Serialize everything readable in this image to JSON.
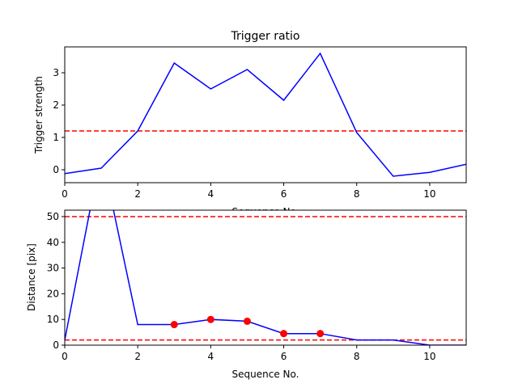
{
  "chart_data": [
    {
      "type": "line",
      "title": "Trigger ratio",
      "xlabel": "Sequence No.",
      "ylabel": "Trigger strength",
      "xlim": [
        0,
        11
      ],
      "ylim": [
        -0.4,
        3.8
      ],
      "xticks": [
        0,
        2,
        4,
        6,
        8,
        10
      ],
      "yticks": [
        0,
        1,
        2,
        3
      ],
      "grid": false,
      "series": [
        {
          "color": "#0000ff",
          "x": [
            0,
            1,
            2,
            3,
            4,
            5,
            6,
            7,
            8,
            9,
            10,
            11
          ],
          "y": [
            -0.12,
            0.05,
            1.2,
            3.3,
            2.5,
            3.1,
            2.15,
            3.6,
            1.15,
            -0.2,
            -0.08,
            0.17
          ]
        }
      ],
      "hlines": [
        {
          "y": 1.2,
          "color": "#ff0000",
          "style": "dashed"
        }
      ]
    },
    {
      "type": "line",
      "xlabel": "Sequence No.",
      "ylabel": "Distance [pix]",
      "xlim": [
        0,
        11
      ],
      "ylim": [
        0,
        52.5
      ],
      "xticks": [
        0,
        2,
        4,
        6,
        8,
        10
      ],
      "yticks": [
        0,
        10,
        20,
        30,
        40,
        50
      ],
      "grid": false,
      "series": [
        {
          "color": "#0000ff",
          "x": [
            0,
            1,
            2,
            3,
            4,
            5,
            6,
            7,
            8,
            9,
            10,
            11
          ],
          "y": [
            2,
            75,
            8,
            8,
            10,
            9.3,
            4.5,
            4.5,
            2,
            2,
            0,
            0
          ]
        }
      ],
      "markers": {
        "color": "#ff0000",
        "x": [
          3,
          4,
          5,
          6,
          7
        ],
        "y": [
          8,
          10,
          9.3,
          4.5,
          4.5
        ]
      },
      "hlines": [
        {
          "y": 50,
          "color": "#ff0000",
          "style": "dashed"
        },
        {
          "y": 2,
          "color": "#ff0000",
          "style": "dashed"
        }
      ]
    }
  ]
}
